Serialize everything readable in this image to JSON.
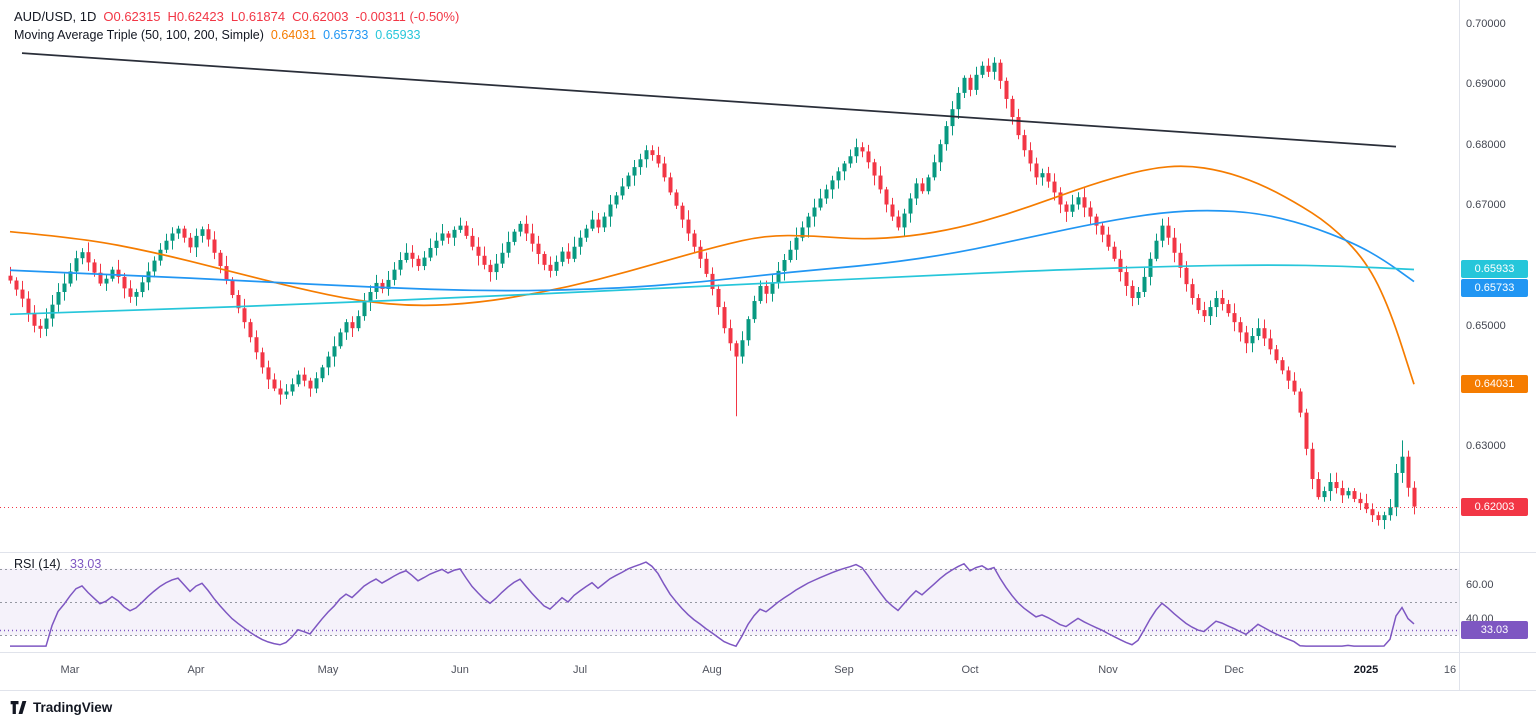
{
  "header": {
    "symbol_text": "AUD/USD, 1D",
    "open": "O0.62315",
    "high": "H0.62423",
    "low": "L0.61874",
    "close": "C0.62003",
    "change": "-0.00311 (-0.50%)"
  },
  "indicator": {
    "label": "Moving Average Triple (50, 100, 200, Simple)",
    "values": [
      "0.64031",
      "0.65733",
      "0.65933"
    ],
    "colors": [
      "#f57c00",
      "#2196f3",
      "#26c6da"
    ]
  },
  "rsi_header": {
    "label": "RSI (14)",
    "value": "33.03"
  },
  "footer": {
    "brand": "TradingView"
  },
  "chart_data": {
    "type": "candlestick",
    "symbol": "AUD/USD",
    "interval": "1D",
    "ylim": [
      0.6125,
      0.704
    ],
    "colors": {
      "up": "#089981",
      "down": "#f23645"
    },
    "closes": [
      0.6575,
      0.656,
      0.6545,
      0.652,
      0.65,
      0.6495,
      0.6512,
      0.6535,
      0.6556,
      0.657,
      0.659,
      0.6612,
      0.6622,
      0.6605,
      0.6588,
      0.657,
      0.6578,
      0.6593,
      0.6581,
      0.6562,
      0.6548,
      0.6556,
      0.6572,
      0.659,
      0.6608,
      0.6626,
      0.6641,
      0.6653,
      0.6661,
      0.6646,
      0.663,
      0.6649,
      0.666,
      0.6643,
      0.6621,
      0.6599,
      0.6576,
      0.6551,
      0.6529,
      0.6506,
      0.6481,
      0.6456,
      0.6431,
      0.6411,
      0.6396,
      0.6386,
      0.6391,
      0.6403,
      0.6419,
      0.6409,
      0.6396,
      0.6413,
      0.6431,
      0.6449,
      0.6466,
      0.6489,
      0.6506,
      0.6496,
      0.6516,
      0.6539,
      0.6556,
      0.6571,
      0.6561,
      0.6576,
      0.6593,
      0.6609,
      0.6621,
      0.6611,
      0.6599,
      0.6613,
      0.6629,
      0.6641,
      0.6653,
      0.6646,
      0.6659,
      0.6666,
      0.6649,
      0.6631,
      0.6616,
      0.6601,
      0.6589,
      0.6603,
      0.6621,
      0.6639,
      0.6656,
      0.6669,
      0.6653,
      0.6636,
      0.6619,
      0.6601,
      0.6591,
      0.6606,
      0.6623,
      0.6611,
      0.6631,
      0.6646,
      0.6661,
      0.6676,
      0.6663,
      0.6681,
      0.6701,
      0.6716,
      0.6731,
      0.6749,
      0.6763,
      0.6776,
      0.6791,
      0.6783,
      0.6769,
      0.6746,
      0.6721,
      0.6699,
      0.6676,
      0.6653,
      0.6631,
      0.6611,
      0.6586,
      0.6561,
      0.6531,
      0.6496,
      0.6471,
      0.6449,
      0.6476,
      0.6511,
      0.6541,
      0.6566,
      0.6553,
      0.6571,
      0.6591,
      0.6609,
      0.6626,
      0.6646,
      0.6663,
      0.6681,
      0.6696,
      0.6711,
      0.6726,
      0.6741,
      0.6756,
      0.6769,
      0.6781,
      0.6796,
      0.6789,
      0.6771,
      0.6749,
      0.6726,
      0.6701,
      0.6681,
      0.6663,
      0.6686,
      0.6711,
      0.6736,
      0.6723,
      0.6746,
      0.6771,
      0.6801,
      0.6831,
      0.6859,
      0.6886,
      0.6911,
      0.6891,
      0.6916,
      0.6931,
      0.6921,
      0.6936,
      0.6906,
      0.6876,
      0.6846,
      0.6816,
      0.6791,
      0.6769,
      0.6746,
      0.6753,
      0.6739,
      0.6721,
      0.6701,
      0.6689,
      0.6701,
      0.6713,
      0.6696,
      0.6681,
      0.6666,
      0.6651,
      0.6631,
      0.6611,
      0.6589,
      0.6566,
      0.6546,
      0.6556,
      0.6581,
      0.6611,
      0.6641,
      0.6666,
      0.6646,
      0.6621,
      0.6596,
      0.6569,
      0.6546,
      0.6526,
      0.6516,
      0.6531,
      0.6546,
      0.6536,
      0.6521,
      0.6506,
      0.6489,
      0.6471,
      0.6483,
      0.6496,
      0.6479,
      0.6461,
      0.6443,
      0.6426,
      0.6409,
      0.6391,
      0.6356,
      0.6296,
      0.6246,
      0.6216,
      0.6226,
      0.6241,
      0.6231,
      0.6219,
      0.6226,
      0.6213,
      0.6206,
      0.6196,
      0.6186,
      0.6178,
      0.6186,
      0.6199,
      0.6256,
      0.6283,
      0.62315,
      0.62003
    ],
    "last_candle": {
      "open": 0.62315,
      "high": 0.62423,
      "low": 0.61874,
      "close": 0.62003
    },
    "wick_overrides": {
      "121": {
        "low": 0.635
      },
      "232": {
        "high": 0.631
      }
    },
    "overlays": [
      {
        "name": "SMA 50",
        "color": "#f57c00",
        "anchors": [
          [
            0,
            0.6656
          ],
          [
            12,
            0.6645
          ],
          [
            24,
            0.6622
          ],
          [
            36,
            0.6592
          ],
          [
            48,
            0.6562
          ],
          [
            58,
            0.6541
          ],
          [
            68,
            0.6532
          ],
          [
            78,
            0.6538
          ],
          [
            88,
            0.6554
          ],
          [
            98,
            0.6576
          ],
          [
            108,
            0.6604
          ],
          [
            118,
            0.6632
          ],
          [
            126,
            0.665
          ],
          [
            134,
            0.6649
          ],
          [
            142,
            0.6643
          ],
          [
            150,
            0.6648
          ],
          [
            158,
            0.6662
          ],
          [
            166,
            0.6684
          ],
          [
            174,
            0.6712
          ],
          [
            182,
            0.674
          ],
          [
            190,
            0.6761
          ],
          [
            196,
            0.6766
          ],
          [
            202,
            0.6757
          ],
          [
            208,
            0.6737
          ],
          [
            214,
            0.6706
          ],
          [
            220,
            0.6668
          ],
          [
            226,
            0.6608
          ],
          [
            230,
            0.6527
          ],
          [
            234,
            0.64031
          ]
        ]
      },
      {
        "name": "SMA 100",
        "color": "#2196f3",
        "anchors": [
          [
            0,
            0.6592
          ],
          [
            20,
            0.6584
          ],
          [
            40,
            0.6574
          ],
          [
            60,
            0.6564
          ],
          [
            80,
            0.6557
          ],
          [
            100,
            0.6561
          ],
          [
            115,
            0.6572
          ],
          [
            130,
            0.6589
          ],
          [
            145,
            0.6602
          ],
          [
            158,
            0.6621
          ],
          [
            170,
            0.6647
          ],
          [
            182,
            0.6672
          ],
          [
            192,
            0.6688
          ],
          [
            200,
            0.6692
          ],
          [
            208,
            0.6687
          ],
          [
            216,
            0.6668
          ],
          [
            224,
            0.6637
          ],
          [
            229,
            0.6609
          ],
          [
            234,
            0.65733
          ]
        ]
      },
      {
        "name": "SMA 200",
        "color": "#26c6da",
        "anchors": [
          [
            0,
            0.6519
          ],
          [
            25,
            0.6527
          ],
          [
            50,
            0.6536
          ],
          [
            75,
            0.6547
          ],
          [
            100,
            0.6558
          ],
          [
            125,
            0.657
          ],
          [
            150,
            0.6582
          ],
          [
            175,
            0.6593
          ],
          [
            195,
            0.6599
          ],
          [
            210,
            0.6601
          ],
          [
            222,
            0.6599
          ],
          [
            234,
            0.65933
          ]
        ]
      }
    ],
    "trendline": {
      "from": [
        2,
        0.6952
      ],
      "to": [
        231,
        0.6797
      ],
      "color": "#2a2e39"
    },
    "price_line": {
      "value": 0.62003,
      "color": "#f23645"
    },
    "y_ticks": [
      {
        "label": "0.70000",
        "value": 0.7
      },
      {
        "label": "0.69000",
        "value": 0.69
      },
      {
        "label": "0.68000",
        "value": 0.68
      },
      {
        "label": "0.67000",
        "value": 0.67
      },
      {
        "label": "0.65000",
        "value": 0.65
      },
      {
        "label": "0.63000",
        "value": 0.63
      }
    ],
    "axis_badges": [
      {
        "label": "0.65933",
        "value": 0.65933,
        "color": "#26c6da"
      },
      {
        "label": "0.65733",
        "value": 0.65733,
        "color": "#2196f3"
      },
      {
        "label": "0.64031",
        "value": 0.64031,
        "color": "#f57c00"
      },
      {
        "label": "0.62003",
        "value": 0.62003,
        "color": "#f23645"
      }
    ],
    "x_labels": [
      {
        "label": "Mar",
        "i": 10
      },
      {
        "label": "Apr",
        "i": 31
      },
      {
        "label": "May",
        "i": 53
      },
      {
        "label": "Jun",
        "i": 75
      },
      {
        "label": "Jul",
        "i": 95
      },
      {
        "label": "Aug",
        "i": 117
      },
      {
        "label": "Sep",
        "i": 139
      },
      {
        "label": "Oct",
        "i": 160
      },
      {
        "label": "Nov",
        "i": 183
      },
      {
        "label": "Dec",
        "i": 204
      },
      {
        "label": "2025",
        "i": 226,
        "bold": true
      },
      {
        "label": "16",
        "i": 240
      }
    ],
    "rsi": {
      "period": 14,
      "current": 33.03,
      "upper": 70,
      "middle": 50,
      "lower": 30,
      "range": [
        20,
        80
      ],
      "color": "#7e57c2",
      "band_fill": "rgba(126,87,194,0.08)",
      "ticks": [
        {
          "label": "60.00",
          "value": 60
        },
        {
          "label": "40.00",
          "value": 40
        }
      ],
      "badge": {
        "label": "33.03",
        "value": 33.03,
        "color": "#7e57c2"
      }
    }
  }
}
